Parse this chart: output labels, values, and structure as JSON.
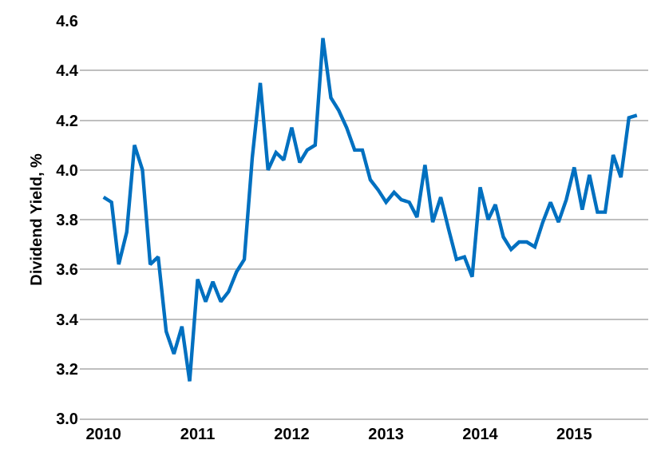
{
  "chart_data": {
    "type": "line",
    "ylabel": "Dividend Yield, %",
    "x": [
      "2010-01",
      "2010-02",
      "2010-03",
      "2010-04",
      "2010-05",
      "2010-06",
      "2010-07",
      "2010-08",
      "2010-09",
      "2010-10",
      "2010-11",
      "2010-12",
      "2011-01",
      "2011-02",
      "2011-03",
      "2011-04",
      "2011-05",
      "2011-06",
      "2011-07",
      "2011-08",
      "2011-09",
      "2011-10",
      "2011-11",
      "2011-12",
      "2012-01",
      "2012-02",
      "2012-03",
      "2012-04",
      "2012-05",
      "2012-06",
      "2012-07",
      "2012-08",
      "2012-09",
      "2012-10",
      "2012-11",
      "2012-12",
      "2013-01",
      "2013-02",
      "2013-03",
      "2013-04",
      "2013-05",
      "2013-06",
      "2013-07",
      "2013-08",
      "2013-09",
      "2013-10",
      "2013-11",
      "2013-12",
      "2014-01",
      "2014-02",
      "2014-03",
      "2014-04",
      "2014-05",
      "2014-06",
      "2014-07",
      "2014-08",
      "2014-09",
      "2014-10",
      "2014-11",
      "2014-12",
      "2015-01",
      "2015-02",
      "2015-03",
      "2015-04",
      "2015-05",
      "2015-06",
      "2015-07",
      "2015-08",
      "2015-09"
    ],
    "series": [
      {
        "color": "#0070c0",
        "values": [
          3.89,
          3.87,
          3.62,
          3.75,
          4.1,
          4.0,
          3.62,
          3.65,
          3.35,
          3.26,
          3.37,
          3.15,
          3.56,
          3.47,
          3.55,
          3.47,
          3.51,
          3.59,
          3.64,
          4.05,
          4.35,
          4.0,
          4.07,
          4.04,
          4.17,
          4.03,
          4.08,
          4.1,
          4.53,
          4.29,
          4.24,
          4.17,
          4.08,
          4.08,
          3.96,
          3.92,
          3.87,
          3.91,
          3.88,
          3.87,
          3.81,
          4.02,
          3.79,
          3.89,
          3.76,
          3.64,
          3.65,
          3.57,
          3.93,
          3.8,
          3.86,
          3.73,
          3.68,
          3.71,
          3.71,
          3.69,
          3.79,
          3.87,
          3.79,
          3.88,
          4.01,
          3.84,
          3.98,
          3.83,
          3.83,
          4.06,
          3.97,
          4.21,
          4.22
        ]
      }
    ],
    "xlim": [
      "2009-10-01",
      "2015-10-15"
    ],
    "xticks": [
      {
        "value": "2010-01-01",
        "label": "2010"
      },
      {
        "value": "2011-01-01",
        "label": "2011"
      },
      {
        "value": "2012-01-01",
        "label": "2012"
      },
      {
        "value": "2013-01-01",
        "label": "2013"
      },
      {
        "value": "2014-01-01",
        "label": "2014"
      },
      {
        "value": "2015-01-01",
        "label": "2015"
      }
    ],
    "ylim": [
      3.0,
      4.6
    ],
    "yticks": [
      {
        "value": 3.0,
        "label": "3.0"
      },
      {
        "value": 3.2,
        "label": "3.2"
      },
      {
        "value": 3.4,
        "label": "3.4"
      },
      {
        "value": 3.6,
        "label": "3.6"
      },
      {
        "value": 3.8,
        "label": "3.8"
      },
      {
        "value": 4.0,
        "label": "4.0"
      },
      {
        "value": 4.2,
        "label": "4.2"
      },
      {
        "value": 4.4,
        "label": "4.4"
      },
      {
        "value": 4.6,
        "label": "4.6"
      }
    ],
    "grid": "y",
    "marker": "none",
    "line_style": "solid"
  }
}
